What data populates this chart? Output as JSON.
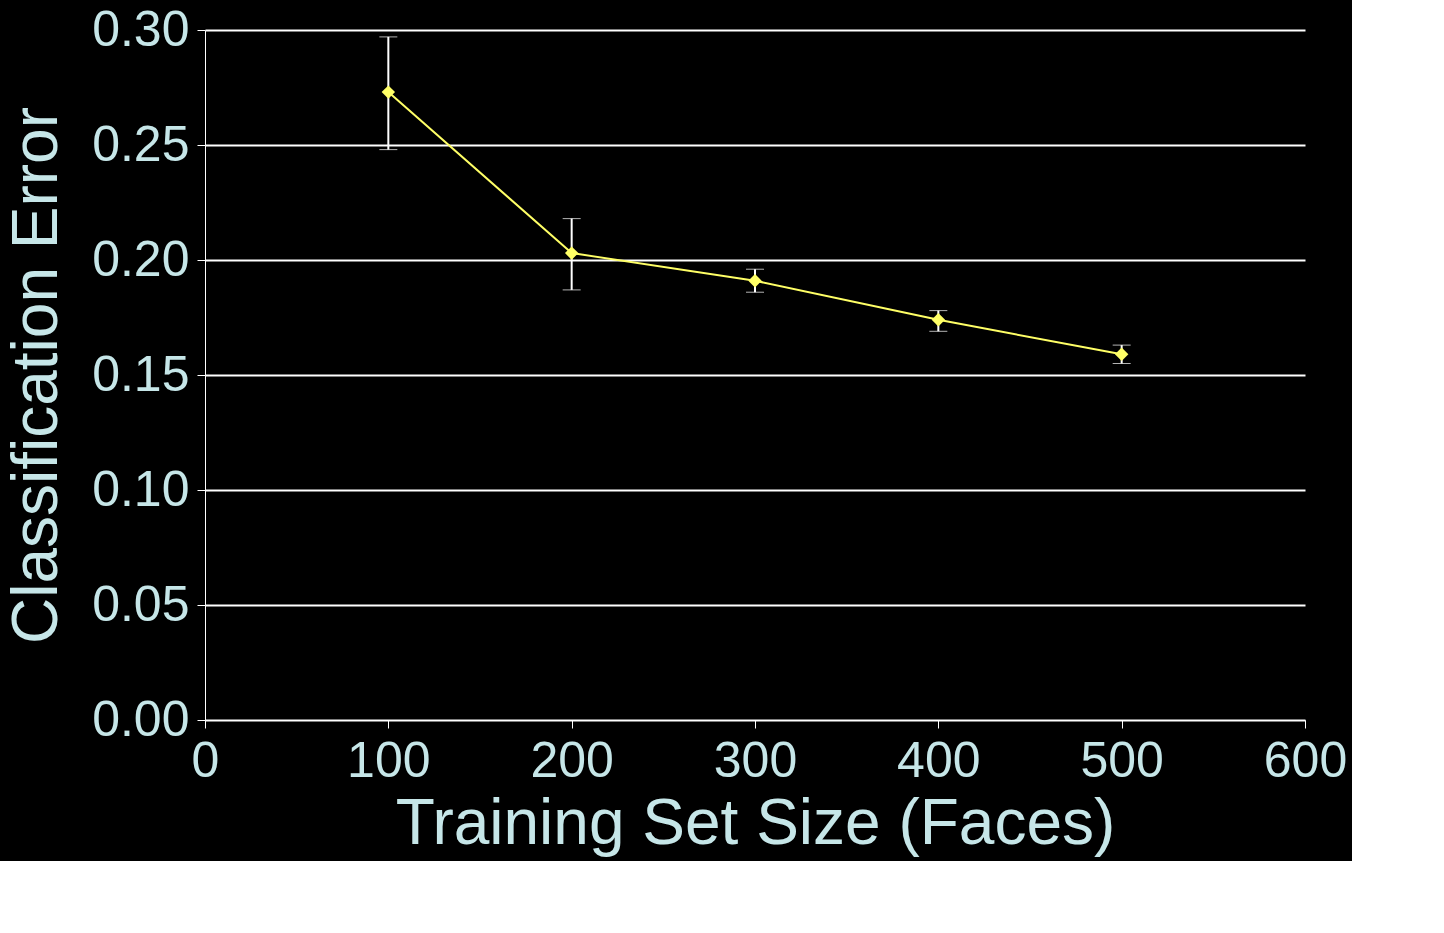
{
  "chart_data": {
    "type": "line",
    "xlabel": "Training Set Size (Faces)",
    "ylabel": "Classification Error",
    "x": [
      100,
      200,
      300,
      400,
      500
    ],
    "series": [
      {
        "color": "#ffff66",
        "values": [
          0.273,
          0.203,
          0.191,
          0.174,
          0.159
        ],
        "errors": [
          [
            0.248,
            0.297
          ],
          [
            0.187,
            0.218
          ],
          [
            0.186,
            0.196
          ],
          [
            0.169,
            0.178
          ],
          [
            0.155,
            0.163
          ]
        ]
      }
    ],
    "xlim": [
      0,
      600
    ],
    "xticks": [
      0,
      100,
      200,
      300,
      400,
      500,
      600
    ],
    "ylim": [
      0,
      0.3
    ],
    "yticks": [
      {
        "value": 0,
        "label": "0.00"
      },
      {
        "value": 0.05,
        "label": "0.05"
      },
      {
        "value": 0.1,
        "label": "0.10"
      },
      {
        "value": 0.15,
        "label": "0.15"
      },
      {
        "value": 0.2,
        "label": "0.20"
      },
      {
        "value": 0.25,
        "label": "0.25"
      },
      {
        "value": 0.3,
        "label": "0.30"
      }
    ],
    "grid": "y",
    "marker": "diamond",
    "line_style": "solid"
  }
}
